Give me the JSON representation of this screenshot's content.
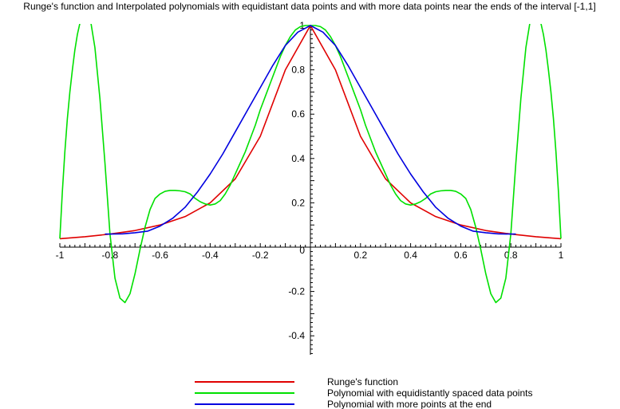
{
  "chart_data": {
    "type": "line",
    "title": "Runge's function and Interpolated polynomials with equidistant data points and with more data points near the ends of the interval [-1,1]",
    "xlabel": "",
    "ylabel": "",
    "xlim": [
      -1,
      1
    ],
    "ylim": [
      -0.5,
      1
    ],
    "x_ticks": [
      "-1",
      "-0.8",
      "-0.6",
      "-0.4",
      "-0.2",
      "0.2",
      "0.4",
      "0.6",
      "0.8",
      "1"
    ],
    "x_tick_values": [
      -1,
      -0.8,
      -0.6,
      -0.4,
      -0.2,
      0.2,
      0.4,
      0.6,
      0.8,
      1
    ],
    "y_ticks": [
      "-0.4",
      "-0.2",
      "0",
      "0.2",
      "0.4",
      "0.6",
      "0.8",
      "1"
    ],
    "y_tick_values": [
      -0.4,
      -0.2,
      0,
      0.2,
      0.4,
      0.6,
      0.8,
      1
    ],
    "legend_position": "bottom",
    "grid": false,
    "series": [
      {
        "name": "Runge's function",
        "color": "#e00000",
        "x": [
          -1,
          -0.9,
          -0.8,
          -0.7,
          -0.6,
          -0.5,
          -0.4,
          -0.3,
          -0.2,
          -0.1,
          0,
          0.1,
          0.2,
          0.3,
          0.4,
          0.5,
          0.6,
          0.7,
          0.8,
          0.9,
          1
        ],
        "y": [
          0.038,
          0.047,
          0.059,
          0.075,
          0.1,
          0.138,
          0.2,
          0.308,
          0.5,
          0.8,
          1,
          0.8,
          0.5,
          0.308,
          0.2,
          0.138,
          0.1,
          0.075,
          0.059,
          0.047,
          0.038
        ]
      },
      {
        "name": "Polynomial with equidistantly spaced data points",
        "color": "#00e000",
        "x": [
          -1,
          -0.99,
          -0.98,
          -0.97,
          -0.96,
          -0.95,
          -0.94,
          -0.93,
          -0.92,
          -0.91,
          -0.9,
          -0.88,
          -0.86,
          -0.84,
          -0.82,
          -0.8,
          -0.78,
          -0.76,
          -0.74,
          -0.72,
          -0.7,
          -0.68,
          -0.66,
          -0.64,
          -0.62,
          -0.6,
          -0.58,
          -0.56,
          -0.54,
          -0.52,
          -0.5,
          -0.48,
          -0.46,
          -0.44,
          -0.42,
          -0.4,
          -0.38,
          -0.36,
          -0.34,
          -0.32,
          -0.3,
          -0.28,
          -0.26,
          -0.24,
          -0.22,
          -0.2,
          -0.18,
          -0.16,
          -0.14,
          -0.12,
          -0.1,
          -0.08,
          -0.06,
          -0.04,
          -0.02,
          0,
          0.02,
          0.04,
          0.06,
          0.08,
          0.1,
          0.12,
          0.14,
          0.16,
          0.18,
          0.2,
          0.22,
          0.24,
          0.26,
          0.28,
          0.3,
          0.32,
          0.34,
          0.36,
          0.38,
          0.4,
          0.42,
          0.44,
          0.46,
          0.48,
          0.5,
          0.52,
          0.54,
          0.56,
          0.58,
          0.6,
          0.62,
          0.64,
          0.66,
          0.68,
          0.7,
          0.72,
          0.74,
          0.76,
          0.78,
          0.8,
          0.82,
          0.84,
          0.86,
          0.88,
          0.9,
          0.91,
          0.92,
          0.93,
          0.94,
          0.95,
          0.96,
          0.97,
          0.98,
          0.99,
          1
        ],
        "y": [
          0.0385,
          0.25,
          0.43,
          0.58,
          0.7,
          0.8,
          0.89,
          0.96,
          1.01,
          1.05,
          1.08,
          1.04,
          0.9,
          0.67,
          0.38,
          0.06,
          -0.14,
          -0.23,
          -0.25,
          -0.21,
          -0.12,
          -0.01,
          0.09,
          0.17,
          0.22,
          0.24,
          0.252,
          0.256,
          0.256,
          0.254,
          0.25,
          0.24,
          0.22,
          0.205,
          0.195,
          0.19,
          0.195,
          0.21,
          0.24,
          0.28,
          0.33,
          0.38,
          0.43,
          0.49,
          0.55,
          0.62,
          0.68,
          0.74,
          0.8,
          0.86,
          0.91,
          0.95,
          0.98,
          0.995,
          1,
          1,
          1,
          0.995,
          0.98,
          0.95,
          0.91,
          0.86,
          0.8,
          0.74,
          0.68,
          0.62,
          0.55,
          0.49,
          0.43,
          0.38,
          0.33,
          0.28,
          0.24,
          0.21,
          0.195,
          0.19,
          0.195,
          0.205,
          0.22,
          0.24,
          0.25,
          0.254,
          0.256,
          0.256,
          0.252,
          0.24,
          0.22,
          0.17,
          0.09,
          -0.01,
          -0.12,
          -0.21,
          -0.25,
          -0.23,
          -0.14,
          0.06,
          0.38,
          0.67,
          0.9,
          1.04,
          1.08,
          1.05,
          1.01,
          0.96,
          0.89,
          0.8,
          0.7,
          0.58,
          0.43,
          0.25,
          0.0385
        ]
      },
      {
        "name": "Polynomial with more points at the end",
        "color": "#0000e0",
        "x": [
          -0.82,
          -0.8,
          -0.75,
          -0.7,
          -0.65,
          -0.6,
          -0.55,
          -0.5,
          -0.45,
          -0.4,
          -0.35,
          -0.3,
          -0.25,
          -0.2,
          -0.15,
          -0.1,
          -0.05,
          0,
          0.05,
          0.1,
          0.15,
          0.2,
          0.25,
          0.3,
          0.35,
          0.4,
          0.45,
          0.5,
          0.55,
          0.6,
          0.65,
          0.7,
          0.75,
          0.8,
          0.82
        ],
        "y": [
          0.059,
          0.059,
          0.06,
          0.065,
          0.072,
          0.095,
          0.13,
          0.18,
          0.25,
          0.33,
          0.42,
          0.52,
          0.62,
          0.72,
          0.82,
          0.91,
          0.97,
          1,
          0.97,
          0.91,
          0.82,
          0.72,
          0.62,
          0.52,
          0.42,
          0.33,
          0.25,
          0.18,
          0.13,
          0.095,
          0.072,
          0.065,
          0.06,
          0.059,
          0.059
        ]
      }
    ]
  }
}
